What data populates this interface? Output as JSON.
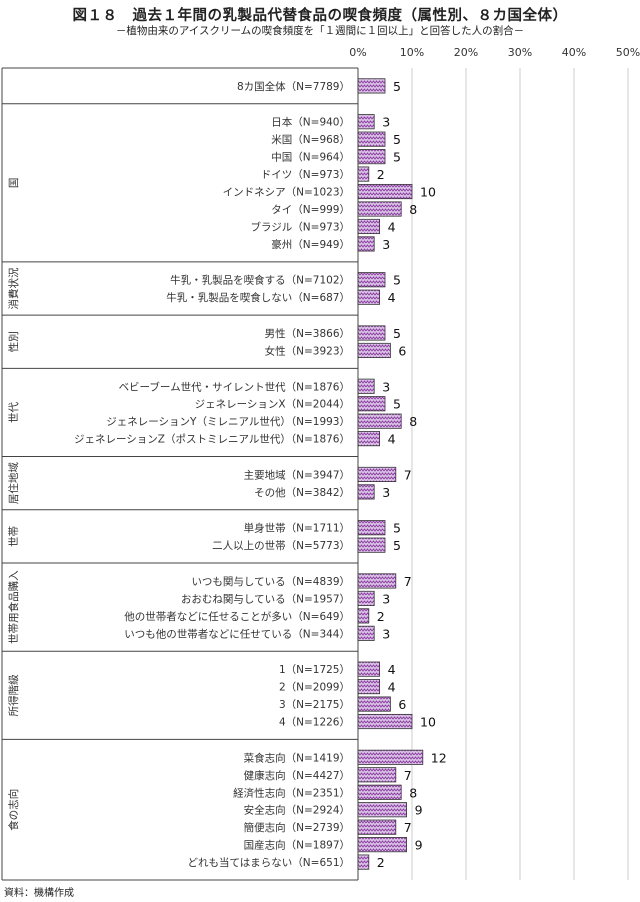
{
  "title": "図１８　過去１年間の乳製品代替食品の喫食頻度（属性別、８カ国全体）",
  "subtitle": "－植物由来のアイスクリームの喫食頻度を「１週間に１回以上」と回答した人の割合－",
  "source": "資料：機構作成",
  "colors": {
    "bar_fill": "#d9c2e6",
    "bar_pattern": "#8a3c9e",
    "grid": "#cccccc"
  },
  "chart_data": {
    "type": "bar",
    "orientation": "horizontal",
    "xlim": [
      0,
      50
    ],
    "xticks": [
      "0%",
      "10%",
      "20%",
      "30%",
      "40%",
      "50%"
    ],
    "grid": true,
    "groups": [
      {
        "name": "",
        "rows": [
          {
            "label": "8カ国全体（N=7789）",
            "value": 5
          }
        ]
      },
      {
        "name": "国",
        "rows": [
          {
            "label": "日本（N=940）",
            "value": 3
          },
          {
            "label": "米国（N=968）",
            "value": 5
          },
          {
            "label": "中国（N=964）",
            "value": 5
          },
          {
            "label": "ドイツ（N=973）",
            "value": 2
          },
          {
            "label": "インドネシア（N=1023）",
            "value": 10
          },
          {
            "label": "タイ（N=999）",
            "value": 8
          },
          {
            "label": "ブラジル（N=973）",
            "value": 4
          },
          {
            "label": "豪州（N=949）",
            "value": 3
          }
        ]
      },
      {
        "name": "消費状況",
        "rows": [
          {
            "label": "牛乳・乳製品を喫食する（N=7102）",
            "value": 5
          },
          {
            "label": "牛乳・乳製品を喫食しない（N=687）",
            "value": 4
          }
        ]
      },
      {
        "name": "性別",
        "rows": [
          {
            "label": "男性（N=3866）",
            "value": 5
          },
          {
            "label": "女性（N=3923）",
            "value": 6
          }
        ]
      },
      {
        "name": "世代",
        "rows": [
          {
            "label": "ベビーブーム世代・サイレント世代（N=1876）",
            "value": 3
          },
          {
            "label": "ジェネレーションX（N=2044）",
            "value": 5
          },
          {
            "label": "ジェネレーションY（ミレニアル世代）（N=1993）",
            "value": 8
          },
          {
            "label": "ジェネレーションZ（ポストミレニアル世代）（N=1876）",
            "value": 4
          }
        ]
      },
      {
        "name": "居住地域",
        "rows": [
          {
            "label": "主要地域（N=3947）",
            "value": 7
          },
          {
            "label": "その他（N=3842）",
            "value": 3
          }
        ]
      },
      {
        "name": "世帯",
        "rows": [
          {
            "label": "単身世帯（N=1711）",
            "value": 5
          },
          {
            "label": "二人以上の世帯（N=5773）",
            "value": 5
          }
        ]
      },
      {
        "name": "世帯用食品購入",
        "rows": [
          {
            "label": "いつも関与している（N=4839）",
            "value": 7
          },
          {
            "label": "おおむね関与している（N=1957）",
            "value": 3
          },
          {
            "label": "他の世帯者などに任せることが多い（N=649）",
            "value": 2
          },
          {
            "label": "いつも他の世帯者などに任せている（N=344）",
            "value": 3
          }
        ]
      },
      {
        "name": "所得階級",
        "rows": [
          {
            "label": "1（N=1725）",
            "value": 4
          },
          {
            "label": "2（N=2099）",
            "value": 4
          },
          {
            "label": "3（N=2175）",
            "value": 6
          },
          {
            "label": "4（N=1226）",
            "value": 10
          }
        ]
      },
      {
        "name": "食の志向",
        "rows": [
          {
            "label": "菜食志向（N=1419）",
            "value": 12
          },
          {
            "label": "健康志向（N=4427）",
            "value": 7
          },
          {
            "label": "経済性志向（N=2351）",
            "value": 8
          },
          {
            "label": "安全志向（N=2924）",
            "value": 9
          },
          {
            "label": "簡便志向（N=2739）",
            "value": 7
          },
          {
            "label": "国産志向（N=1897）",
            "value": 9
          },
          {
            "label": "どれも当てはまらない（N=651）",
            "value": 2
          }
        ]
      }
    ]
  }
}
